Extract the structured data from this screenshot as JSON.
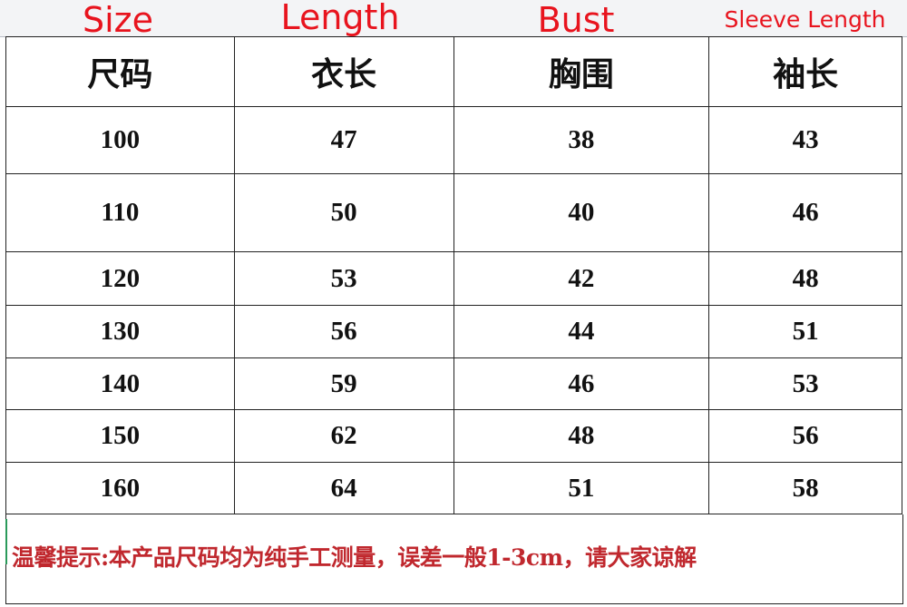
{
  "english_headers": [
    "Size",
    "Length",
    "Bust",
    "Sleeve Length"
  ],
  "headers": [
    "尺码",
    "衣长",
    "胸围",
    "袖长"
  ],
  "rows": [
    [
      "100",
      "47",
      "38",
      "43"
    ],
    [
      "110",
      "50",
      "40",
      "46"
    ],
    [
      "120",
      "53",
      "42",
      "48"
    ],
    [
      "130",
      "56",
      "44",
      "51"
    ],
    [
      "140",
      "59",
      "46",
      "53"
    ],
    [
      "150",
      "62",
      "48",
      "56"
    ],
    [
      "160",
      "64",
      "51",
      "58"
    ]
  ],
  "note": "温馨提示:本产品尺码均为纯手工测量，误差一般1-3cm，请大家谅解",
  "colors": {
    "english_label": "#e8141e",
    "note": "#c0282e"
  }
}
